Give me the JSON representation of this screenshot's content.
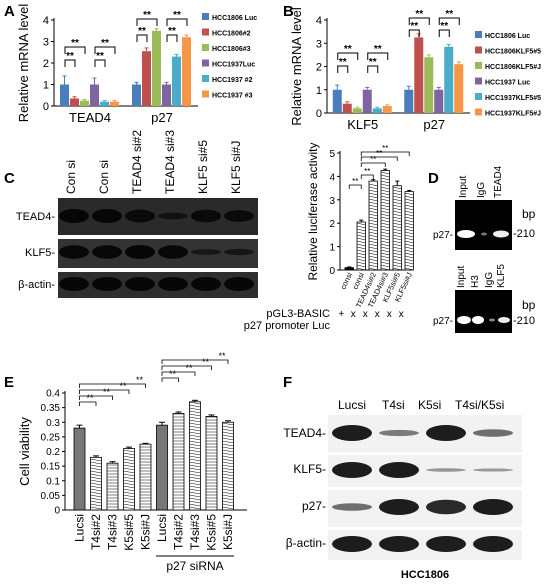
{
  "panels": [
    "A",
    "B",
    "C",
    "D",
    "E",
    "F"
  ],
  "colors": {
    "blue": "#4a7ebb",
    "red": "#c0504d",
    "green": "#9bbb59",
    "purple": "#8064a2",
    "cyan": "#4bacc6",
    "orange": "#f79646"
  },
  "sig": "**",
  "chart_data": [
    {
      "panel": "A",
      "type": "bar",
      "ylabel": "Relative mRNA level",
      "ylim": [
        0,
        4
      ],
      "categories": [
        "TEAD4",
        "p27"
      ],
      "series": [
        {
          "name": "HCC1806 Luc",
          "values": [
            1.0,
            1.0
          ],
          "err": [
            0.4,
            0.1
          ]
        },
        {
          "name": "HCC1806#2",
          "values": [
            0.35,
            2.55
          ],
          "err": [
            0.08,
            0.15
          ]
        },
        {
          "name": "HCC1806#3",
          "values": [
            0.25,
            3.5
          ],
          "err": [
            0.05,
            0.1
          ]
        },
        {
          "name": "HCC1937Luc",
          "values": [
            1.0,
            1.0
          ],
          "err": [
            0.3,
            0.1
          ]
        },
        {
          "name": "HCC1937 #2",
          "values": [
            0.2,
            2.3
          ],
          "err": [
            0.05,
            0.1
          ]
        },
        {
          "name": "HCC1937 #3",
          "values": [
            0.2,
            3.2
          ],
          "err": [
            0.05,
            0.1
          ]
        }
      ]
    },
    {
      "panel": "B",
      "type": "bar",
      "ylabel": "Relative mRNA level",
      "ylim": [
        0,
        4
      ],
      "categories": [
        "KLF5",
        "p27"
      ],
      "series": [
        {
          "name": "HCC1806 Luc",
          "values": [
            1.0,
            1.0
          ],
          "err": [
            0.2,
            0.15
          ]
        },
        {
          "name": "HCC1806KLF5#5",
          "values": [
            0.4,
            3.25
          ],
          "err": [
            0.08,
            0.15
          ]
        },
        {
          "name": "HCC1806KLF5#J",
          "values": [
            0.2,
            2.4
          ],
          "err": [
            0.05,
            0.1
          ]
        },
        {
          "name": "HCC1937 Luc",
          "values": [
            1.0,
            1.0
          ],
          "err": [
            0.1,
            0.1
          ]
        },
        {
          "name": "HCC1937KLF5#5",
          "values": [
            0.2,
            2.85
          ],
          "err": [
            0.05,
            0.1
          ]
        },
        {
          "name": "HCC1937KLF5#J",
          "values": [
            0.3,
            2.1
          ],
          "err": [
            0.05,
            0.1
          ]
        }
      ]
    },
    {
      "panel": "C",
      "type": "bar",
      "ylabel": "Relative luciferase activity",
      "ylim": [
        0,
        5
      ],
      "yticks": [
        "0",
        "1",
        "2",
        "3",
        "4",
        "5"
      ],
      "categories": [
        "consi",
        "consi",
        "TEAD4si#2",
        "TEAD4si#3",
        "KLF5si#5",
        "KLF5si#J"
      ],
      "values": [
        0.1,
        2.05,
        3.8,
        4.25,
        3.6,
        3.35
      ],
      "err": [
        0.03,
        0.08,
        0.06,
        0.06,
        0.2,
        0.05
      ],
      "row_labels": [
        "pGL3-BASIC",
        "p27 promoter Luc"
      ],
      "row_marks_basic": [
        "+",
        "x",
        "x",
        "x",
        "x",
        "x"
      ],
      "row_marks_p27": [
        "",
        "+",
        "+",
        "+",
        "+",
        "+"
      ]
    },
    {
      "panel": "E",
      "type": "bar",
      "ylabel": "Cell viability",
      "ylim": [
        0,
        0.4
      ],
      "yticks": [
        "0",
        "0.05",
        "0.1",
        "0.15",
        "0.2",
        "0.25",
        "0.3",
        "0.35",
        "0.4"
      ],
      "categories": [
        "Lucsi",
        "T4si#2",
        "T4si#3",
        "K5si#5",
        "K5si#J",
        "Lucsi",
        "T4si#2",
        "T4si#3",
        "K5si#5",
        "K5si#J"
      ],
      "values": [
        0.28,
        0.18,
        0.16,
        0.21,
        0.225,
        0.29,
        0.33,
        0.37,
        0.32,
        0.3
      ],
      "err": [
        0.01,
        0.005,
        0.005,
        0.005,
        0.003,
        0.01,
        0.005,
        0.005,
        0.005,
        0.005
      ],
      "group_label": "p27 siRNA"
    }
  ],
  "blot_c": {
    "lanes": [
      "Con si",
      "Con si",
      "TEAD4 si#2",
      "TEAD4 si#3",
      "KLF5 si#5",
      "KLF5 si#J"
    ],
    "rows": [
      "TEAD4-",
      "KLF5-",
      "β-actin-"
    ]
  },
  "blot_d": {
    "top_lanes": [
      "Input",
      "IgG",
      "TEAD4"
    ],
    "bottom_lanes": [
      "Input",
      "H3",
      "IgG",
      "KLF5"
    ],
    "row_label": "p27-",
    "unit": "bp",
    "size": "-210"
  },
  "blot_f": {
    "lanes": [
      "Lucsi",
      "T4si",
      "K5si",
      "T4si/K5si"
    ],
    "rows": [
      "TEAD4-",
      "KLF5-",
      "p27-",
      "β-actin-"
    ],
    "caption": "HCC1806"
  }
}
